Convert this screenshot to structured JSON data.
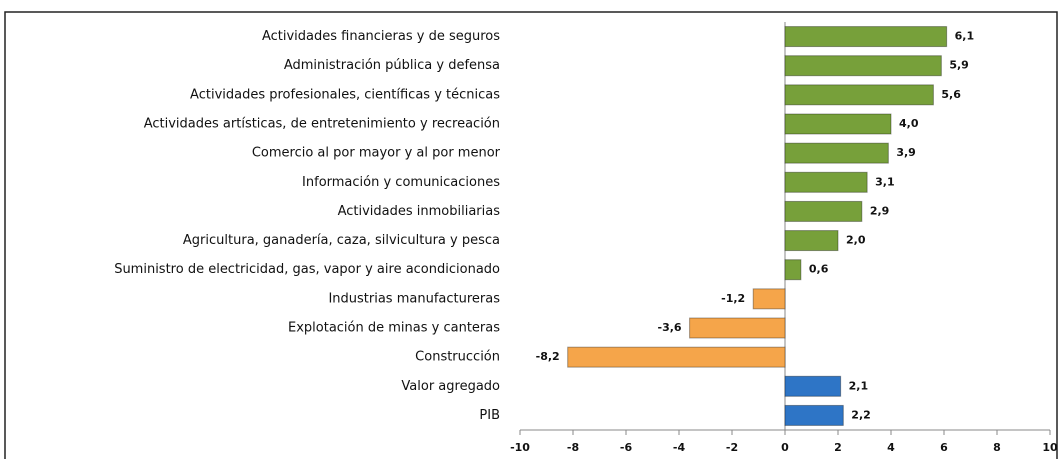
{
  "chart_data": {
    "type": "barh",
    "categories": [
      "Actividades financieras y de seguros",
      "Administración pública y defensa",
      "Actividades profesionales, científicas y técnicas",
      "Actividades artísticas, de entretenimiento y recreación",
      "Comercio al por mayor y al por menor",
      "Información y comunicaciones",
      "Actividades inmobiliarias",
      "Agricultura, ganadería, caza, silvicultura y pesca",
      "Suministro de electricidad, gas, vapor y aire acondicionado",
      "Industrias manufactureras",
      "Explotación de minas y canteras",
      "Construcción",
      "Valor agregado",
      "PIB"
    ],
    "values": [
      6.1,
      5.9,
      5.6,
      4.0,
      3.9,
      3.1,
      2.9,
      2.0,
      0.6,
      -1.2,
      -3.6,
      -8.2,
      2.1,
      2.2
    ],
    "value_labels": [
      "6,1",
      "5,9",
      "5,6",
      "4,0",
      "3,9",
      "3,1",
      "2,9",
      "2,0",
      "0,6",
      "-1,2",
      "-3,6",
      "-8,2",
      "2,1",
      "2,2"
    ],
    "colors": [
      "#77a03a",
      "#77a03a",
      "#77a03a",
      "#77a03a",
      "#77a03a",
      "#77a03a",
      "#77a03a",
      "#77a03a",
      "#77a03a",
      "#f5a54a",
      "#f5a54a",
      "#f5a54a",
      "#2e75c6",
      "#2e75c6"
    ],
    "xlim": [
      -10,
      10
    ],
    "xticks": [
      -10,
      -8,
      -6,
      -4,
      -2,
      0,
      2,
      4,
      6,
      8,
      10
    ]
  }
}
